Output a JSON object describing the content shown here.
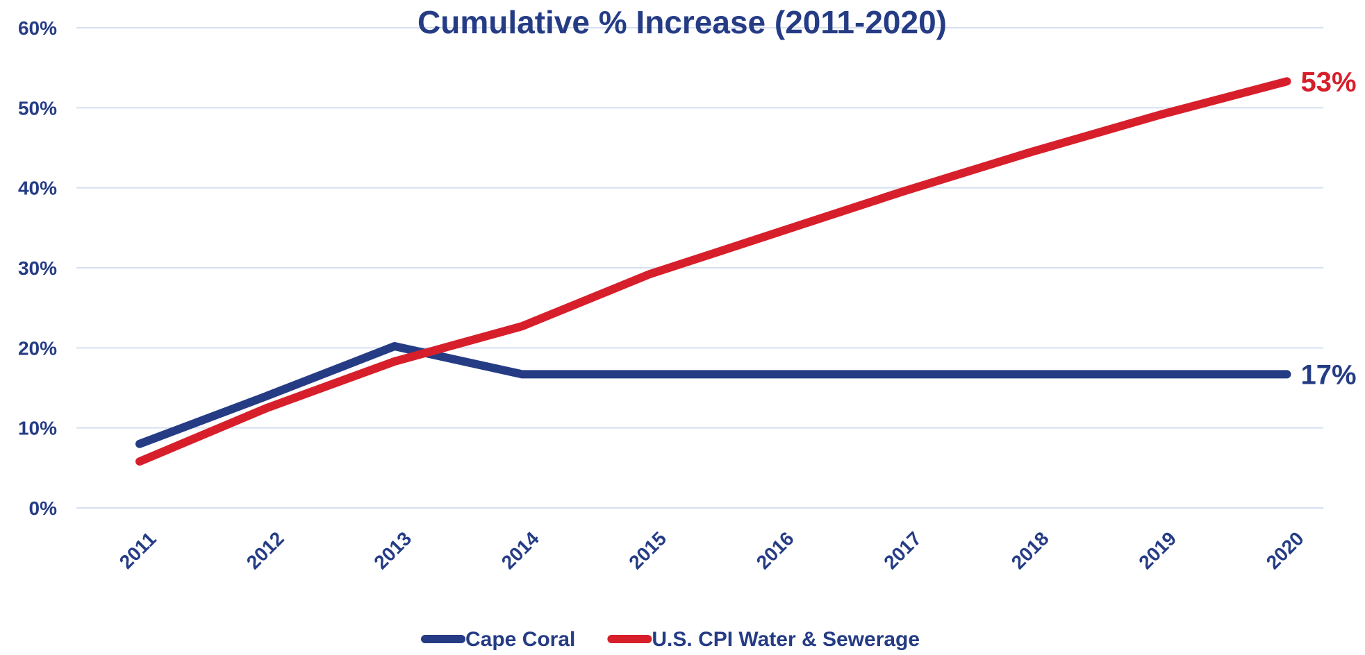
{
  "chart_data": {
    "type": "line",
    "title": "Cumulative % Increase (2011-2020)",
    "xlabel": "",
    "ylabel": "",
    "categories": [
      "2011",
      "2012",
      "2013",
      "2014",
      "2015",
      "2016",
      "2017",
      "2018",
      "2019",
      "2020"
    ],
    "y_ticks": [
      "0%",
      "10%",
      "20%",
      "30%",
      "40%",
      "50%",
      "60%"
    ],
    "ylim": [
      0,
      60
    ],
    "grid": true,
    "legend_position": "bottom",
    "series": [
      {
        "name": "Cape Coral",
        "color": "#253c85",
        "values": [
          8,
          14,
          20.2,
          16.7,
          16.7,
          16.7,
          16.7,
          16.7,
          16.7,
          16.7
        ],
        "end_label": "17%"
      },
      {
        "name": "U.S. CPI Water & Sewerage",
        "color": "#d71f2b",
        "values": [
          5.8,
          12.5,
          18.3,
          22.7,
          29.2,
          34.4,
          39.6,
          44.5,
          49.1,
          53.3
        ],
        "end_label": "53%"
      }
    ],
    "colors": {
      "text": "#253c85",
      "grid": "#d6dff0"
    }
  }
}
